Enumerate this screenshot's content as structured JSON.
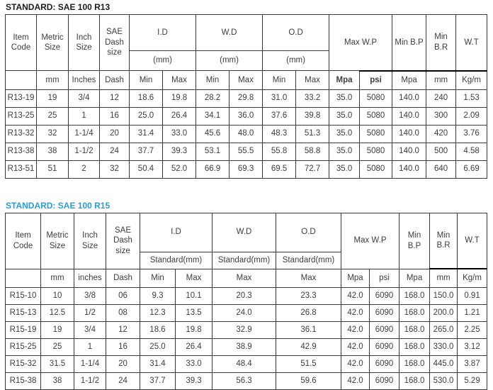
{
  "accent_colors": {
    "title1": "#1C1C1C",
    "title2": "#2E9BD5",
    "grid": "#3A3A3A"
  },
  "tables": [
    {
      "title": "STANDARD: SAE 100 R13",
      "header": {
        "item_code": "Item Code",
        "metric_size": "Metric Size",
        "inch_size": "Inch Size",
        "sae_dash": "SAE Dash size",
        "id": "I.D",
        "wd": "W.D",
        "od": "O.D",
        "mm_sub": "(mm)",
        "max_wp": "Max W.P",
        "min_bp": "Min B.P",
        "min_br": "Min B.R",
        "wt": "W.T"
      },
      "units": [
        "",
        "mm",
        "Inches",
        "Dash",
        "Min",
        "Max",
        "Min",
        "Max",
        "Min",
        "Max",
        "Mpa",
        "psi",
        "Mpa",
        "mm",
        "Kg/m"
      ],
      "rows": [
        [
          "R13-19",
          "19",
          "3/4",
          "12",
          "18.6",
          "19.8",
          "28.2",
          "29.8",
          "31.0",
          "33.2",
          "35.0",
          "5080",
          "140.0",
          "240",
          "1.53"
        ],
        [
          "R13-25",
          "25",
          "1",
          "16",
          "25.0",
          "26.4",
          "34.1",
          "36.0",
          "37.6",
          "39.8",
          "35.0",
          "5080",
          "140.0",
          "300",
          "2.09"
        ],
        [
          "R13-32",
          "32",
          "1-1/4",
          "20",
          "31.4",
          "33.0",
          "45.6",
          "48.0",
          "48.3",
          "51.3",
          "35.0",
          "5080",
          "140.0",
          "420",
          "3.76"
        ],
        [
          "R13-38",
          "38",
          "1-1/2",
          "24",
          "37.7",
          "39.3",
          "53.1",
          "55.5",
          "55.8",
          "58.8",
          "35.0",
          "5080",
          "140.0",
          "500",
          "4.58"
        ],
        [
          "R13-51",
          "51",
          "2",
          "32",
          "50.4",
          "52.0",
          "66.9",
          "69.3",
          "69.5",
          "72.7",
          "35.0",
          "5080",
          "140.0",
          "640",
          "6.69"
        ]
      ]
    },
    {
      "title": "STANDARD: SAE 100 R15",
      "header": {
        "item_code": "Item Code",
        "metric_size": "Metric Size",
        "inch_size": "Inch Size",
        "sae_dash": "SAE Dash size",
        "id": "I.D",
        "wd": "W.D",
        "od": "O.D",
        "standard_mm_sub": "Standard(mm)",
        "max_wp": "Max W.P",
        "min_bp": "Min B.P",
        "min_br": "Min B.R",
        "wt": "W.T"
      },
      "units": [
        "",
        "mm",
        "inches",
        "Dash",
        "Min",
        "Max",
        "Max",
        "Max",
        "Mpa",
        "psi",
        "Mpa",
        "mm",
        "Kg/m"
      ],
      "rows": [
        [
          "R15-10",
          "10",
          "3/8",
          "06",
          "9.3",
          "10.1",
          "20.3",
          "23.3",
          "42.0",
          "6090",
          "168.0",
          "150.0",
          "0.91"
        ],
        [
          "R15-13",
          "12.5",
          "1/2",
          "08",
          "12.3",
          "13.5",
          "24.0",
          "26.8",
          "42.0",
          "6090",
          "168.0",
          "200.0",
          "1.21"
        ],
        [
          "R15-19",
          "19",
          "3/4",
          "12",
          "18.6",
          "19.8",
          "32.9",
          "36.1",
          "42.0",
          "6090",
          "168.0",
          "265.0",
          "2.25"
        ],
        [
          "R15-25",
          "25",
          "1",
          "16",
          "25.0",
          "26.4",
          "38.9",
          "42.9",
          "42.0",
          "6090",
          "168.0",
          "330.0",
          "3.12"
        ],
        [
          "R15-32",
          "31.5",
          "1-1/4",
          "20",
          "31.4",
          "33.0",
          "48.4",
          "51.5",
          "42.0",
          "6090",
          "168.0",
          "445.0",
          "3.87"
        ],
        [
          "R15-38",
          "38",
          "1-1/2",
          "24",
          "37.7",
          "39.3",
          "56.3",
          "59.6",
          "42.0",
          "6090",
          "168.0",
          "530.0",
          "5.29"
        ]
      ]
    }
  ]
}
